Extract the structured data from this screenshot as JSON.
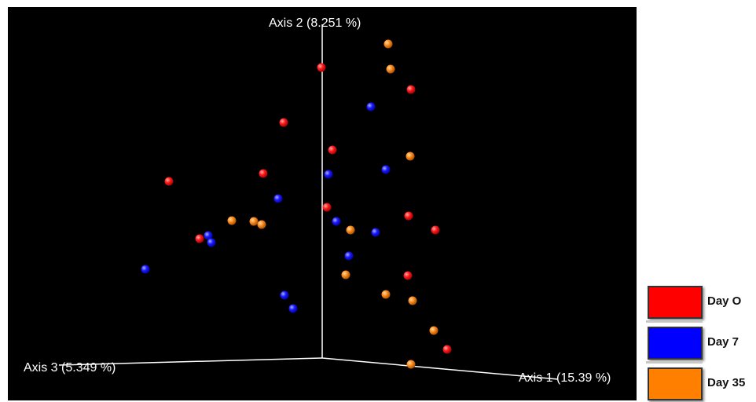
{
  "chart_data": {
    "type": "scatter",
    "title": "",
    "axes": {
      "axis1": "Axis 1 (15.39 %)",
      "axis2": "Axis 2 (8.251 %)",
      "axis3": "Axis 3 (5.349 %)"
    },
    "grid": false,
    "legend_position": "bottom-right",
    "background_color": "#000000",
    "axis_color": "#ffffff",
    "series": [
      {
        "name": "Day O",
        "color": "#ff0000",
        "points": [
          [
            409,
            86
          ],
          [
            523,
            114
          ],
          [
            361,
            156
          ],
          [
            423,
            191
          ],
          [
            215,
            231
          ],
          [
            335,
            221
          ],
          [
            416,
            264
          ],
          [
            520,
            275
          ],
          [
            554,
            293
          ],
          [
            254,
            304
          ],
          [
            519,
            351
          ],
          [
            569,
            445
          ]
        ]
      },
      {
        "name": "Day 7",
        "color": "#0000ff",
        "points": [
          [
            472,
            136
          ],
          [
            491,
            216
          ],
          [
            418,
            222
          ],
          [
            354,
            253
          ],
          [
            428,
            282
          ],
          [
            478,
            296
          ],
          [
            265,
            300
          ],
          [
            269,
            309
          ],
          [
            444,
            326
          ],
          [
            185,
            343
          ],
          [
            362,
            376
          ],
          [
            373,
            393
          ]
        ]
      },
      {
        "name": "Day 35",
        "color": "#ff8000",
        "points": [
          [
            494,
            56
          ],
          [
            497,
            88
          ],
          [
            522,
            199
          ],
          [
            295,
            281
          ],
          [
            323,
            282
          ],
          [
            333,
            286
          ],
          [
            446,
            293
          ],
          [
            440,
            350
          ],
          [
            491,
            375
          ],
          [
            525,
            383
          ],
          [
            552,
            421
          ],
          [
            523,
            464
          ]
        ]
      }
    ]
  }
}
